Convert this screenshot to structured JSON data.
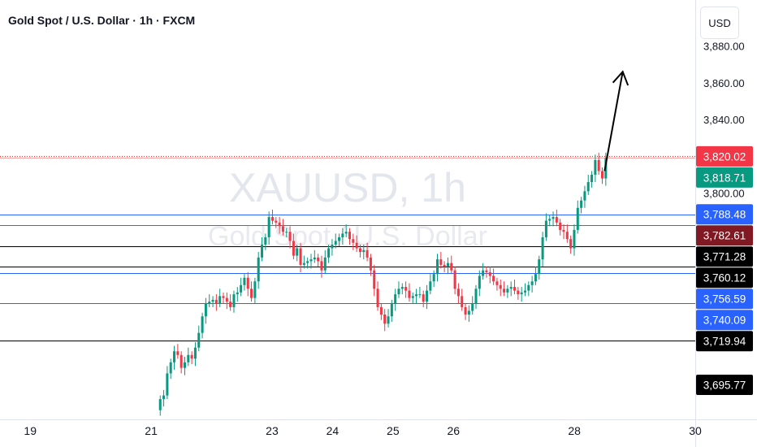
{
  "header": {
    "title": "Gold Spot / U.S. Dollar · 1h · FXCM",
    "currency": "USD"
  },
  "watermark": {
    "symbol": "XAUUSD, 1h",
    "description": "Gold Spot / U.S. Dollar"
  },
  "colors": {
    "up": "#089981",
    "down": "#f23645",
    "blue_line": "#2962ff",
    "red_line": "#e53935",
    "black_line": "#000000",
    "dark_red": "#801922",
    "annotation": "#000000"
  },
  "chart_data": {
    "type": "candlestick",
    "title": "Gold Spot / U.S. Dollar · 1h · FXCM",
    "x_range": [
      18.5,
      30
    ],
    "y_range": [
      3677,
      3905
    ],
    "x_ticks": [
      {
        "value": 19,
        "label": "19"
      },
      {
        "value": 21,
        "label": "21"
      },
      {
        "value": 23,
        "label": "23"
      },
      {
        "value": 24,
        "label": "24"
      },
      {
        "value": 25,
        "label": "25"
      },
      {
        "value": 26,
        "label": "26"
      },
      {
        "value": 28,
        "label": "28"
      },
      {
        "value": 30,
        "label": "30"
      }
    ],
    "y_ticks": [
      {
        "value": 3880,
        "label": "3,880.00"
      },
      {
        "value": 3860,
        "label": "3,860.00"
      },
      {
        "value": 3840,
        "label": "3,840.00"
      },
      {
        "value": 3800,
        "label": "3,800.00"
      }
    ],
    "series": [
      {
        "close": [
          3688,
          3690,
          3702,
          3708,
          3714,
          3712,
          3705,
          3708,
          3712,
          3710,
          3716,
          3724,
          3733,
          3740,
          3741,
          3742,
          3740,
          3744,
          3743,
          3741,
          3738,
          3745,
          3746,
          3750,
          3754,
          3748,
          3743,
          3752,
          3765,
          3772,
          3776,
          3787,
          3785,
          3784,
          3782,
          3779,
          3779,
          3774,
          3766,
          3770,
          3761,
          3762,
          3763,
          3764,
          3765,
          3763,
          3758,
          3765,
          3770,
          3772,
          3774,
          3776,
          3778,
          3779,
          3775,
          3773,
          3770,
          3768,
          3769,
          3765,
          3758,
          3748,
          3738,
          3734,
          3729,
          3733,
          3740,
          3745,
          3748,
          3749,
          3747,
          3743,
          3744,
          3745,
          3745,
          3741,
          3747,
          3752,
          3756,
          3764,
          3761,
          3760,
          3762,
          3758,
          3748,
          3744,
          3738,
          3734,
          3736,
          3740,
          3748,
          3755,
          3758,
          3757,
          3755,
          3752,
          3750,
          3748,
          3746,
          3748,
          3749,
          3747,
          3745,
          3746,
          3747,
          3750,
          3752,
          3756,
          3764,
          3776,
          3785,
          3786,
          3787,
          3784,
          3780,
          3779,
          3775,
          3770,
          3780,
          3792,
          3796,
          3801,
          3806,
          3810,
          3818,
          3812,
          3808,
          3819
        ]
      }
    ],
    "levels": [
      {
        "price": 3820.02,
        "label": "3,820.02",
        "line": "red_dotted",
        "badge": "#f23645"
      },
      {
        "price": 3818.71,
        "label": "3,818.71",
        "line": "none",
        "badge": "#089981"
      },
      {
        "price": 3788.48,
        "label": "3,788.48",
        "line": "blue",
        "badge": "#2962ff"
      },
      {
        "price": 3782.61,
        "label": "3,782.61",
        "line": "red",
        "badge": "#801922"
      },
      {
        "price": 3771.28,
        "label": "3,771.28",
        "line": "black",
        "badge": "#000000"
      },
      {
        "price": 3760.12,
        "label": "3,760.12",
        "line": "black",
        "badge": "#000000"
      },
      {
        "price": 3756.59,
        "label": "3,756.59",
        "line": "blue",
        "badge": "#2962ff"
      },
      {
        "price": 3740.09,
        "label": "3,740.09",
        "line": "blue",
        "badge": "#2962ff"
      },
      {
        "price": 3719.94,
        "label": "3,719.94",
        "line": "black",
        "badge": "#000000"
      },
      {
        "price": 3695.77,
        "label": "3,695.77",
        "line": "none",
        "badge": "#000000"
      }
    ],
    "annotation": {
      "type": "arrow",
      "from": {
        "x": 28.5,
        "price": 3812
      },
      "to": {
        "x": 28.8,
        "price": 3866
      }
    }
  }
}
